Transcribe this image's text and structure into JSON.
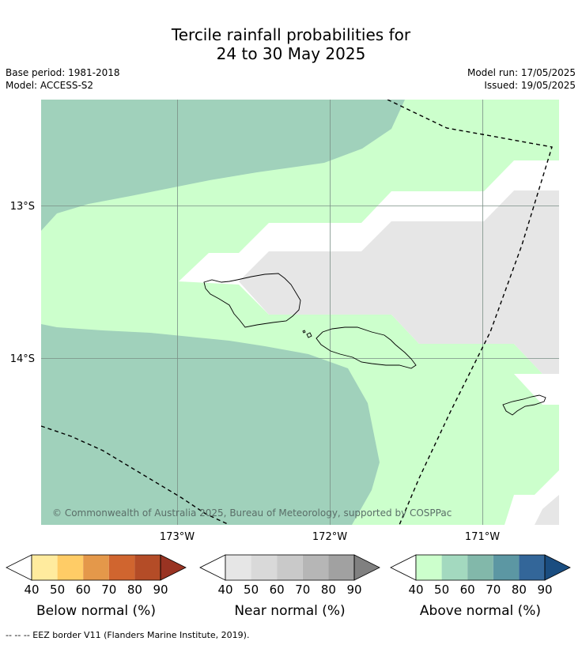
{
  "title": {
    "line1": "Tercile rainfall probabilities for",
    "line2": "24 to 30 May 2025"
  },
  "meta": {
    "base_period": "Base period: 1981-2018",
    "model": "Model: ACCESS-S2",
    "model_run": "Model run: 17/05/2025",
    "issued": "Issued: 19/05/2025"
  },
  "map": {
    "lat_labels": [
      "13°S",
      "14°S"
    ],
    "lon_labels": [
      "173°W",
      "172°W",
      "171°W"
    ],
    "copyright": "© Commonwealth of Australia 2025, Bureau of Meteorology, supported by COSPPac",
    "colors": {
      "above_40": "#ccffcc",
      "above_50": "#a0d1bb",
      "near_40": "#e6e6e6",
      "white": "#ffffff"
    }
  },
  "colorbars": [
    {
      "name": "Below normal (%)",
      "ticks": [
        "40",
        "50",
        "60",
        "70",
        "80",
        "90"
      ],
      "colors": [
        "#ffffff",
        "#ffeb9e",
        "#ffcc66",
        "#e4984a",
        "#d0652f",
        "#b44c27",
        "#993322"
      ]
    },
    {
      "name": "Near normal (%)",
      "ticks": [
        "40",
        "50",
        "60",
        "70",
        "80",
        "90"
      ],
      "colors": [
        "#ffffff",
        "#e6e6e6",
        "#d9d9d9",
        "#c9c9c9",
        "#b6b6b6",
        "#a1a1a1",
        "#808080"
      ]
    },
    {
      "name": "Above normal (%)",
      "ticks": [
        "40",
        "50",
        "60",
        "70",
        "80",
        "90"
      ],
      "colors": [
        "#ffffff",
        "#ccffcc",
        "#a3d9bf",
        "#82b8aa",
        "#5c97a3",
        "#336699",
        "#1a4d80"
      ]
    }
  ],
  "footnote": "--  --  -- EEZ border V11 (Flanders Marine Institute, 2019)."
}
